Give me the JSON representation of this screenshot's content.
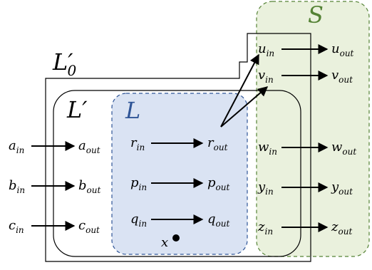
{
  "regions": {
    "S": {
      "label": "S",
      "color": "#548235",
      "fill": "#eaf1dd"
    },
    "L": {
      "label": "L",
      "color": "#2f5597",
      "fill": "#dae3f3"
    },
    "L_prime": {
      "label": "L",
      "mark": "′"
    },
    "L0_prime": {
      "label": "L",
      "mark": "′",
      "subscript": "0"
    }
  },
  "nodes": [
    {
      "id": "a",
      "base": "a",
      "in": "in",
      "out": "out"
    },
    {
      "id": "b",
      "base": "b",
      "in": "in",
      "out": "out"
    },
    {
      "id": "c",
      "base": "c",
      "in": "in",
      "out": "out"
    },
    {
      "id": "r",
      "base": "r",
      "in": "in",
      "out": "out"
    },
    {
      "id": "p",
      "base": "p",
      "in": "in",
      "out": "out"
    },
    {
      "id": "q",
      "base": "q",
      "in": "in",
      "out": "out"
    },
    {
      "id": "u",
      "base": "u",
      "in": "in",
      "out": "out"
    },
    {
      "id": "v",
      "base": "v",
      "in": "in",
      "out": "out"
    },
    {
      "id": "w",
      "base": "w",
      "in": "in",
      "out": "out"
    },
    {
      "id": "y",
      "base": "y",
      "in": "in",
      "out": "out"
    },
    {
      "id": "z",
      "base": "z",
      "in": "in",
      "out": "out"
    }
  ],
  "cross_edges": [
    {
      "from": "r_out",
      "to": "u_in"
    },
    {
      "from": "r_out",
      "to": "v_in"
    }
  ],
  "point": {
    "label": "x"
  }
}
